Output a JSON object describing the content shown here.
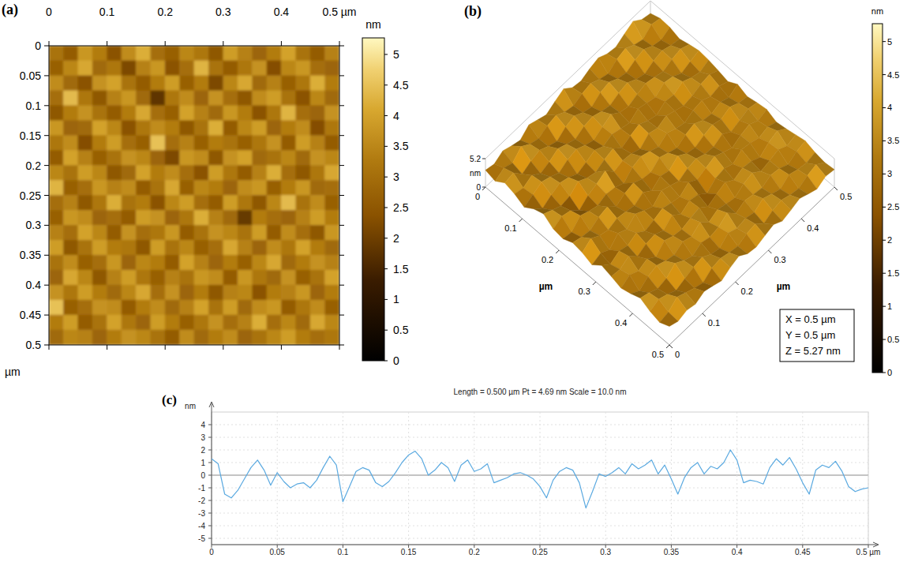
{
  "chart_data": [
    {
      "type": "heatmap",
      "title": "(a)",
      "xlim": [
        0,
        0.5
      ],
      "xticks": [
        0,
        0.1,
        0.2,
        0.3,
        0.4,
        {
          "value": 0.5,
          "label": "0.5 µm"
        }
      ],
      "ylim": [
        0,
        0.5
      ],
      "yticks": [
        0,
        0.05,
        0.1,
        0.15,
        0.2,
        0.25,
        0.3,
        0.35,
        0.4,
        0.45,
        0.5
      ],
      "y_label": "µm",
      "colorbar": {
        "label": "nm",
        "range": [
          0,
          5.27
        ],
        "ticks": [
          0,
          0.5,
          1,
          1.5,
          2,
          2.5,
          3,
          3.5,
          4,
          4.5,
          5
        ]
      },
      "cells": [
        [
          3.1,
          2.6,
          3.8,
          3.3,
          2.4,
          3.6,
          4.2,
          3.0,
          2.7,
          3.5,
          3.2,
          2.5,
          3.9,
          3.4,
          2.8,
          3.3,
          4.0,
          3.1,
          2.6,
          3.4
        ],
        [
          2.7,
          3.5,
          4.1,
          2.9,
          3.2,
          2.2,
          3.4,
          3.8,
          2.4,
          3.0,
          4.3,
          3.1,
          2.6,
          3.2,
          3.7,
          2.3,
          3.5,
          3.8,
          3.0,
          2.8
        ],
        [
          3.6,
          2.9,
          2.4,
          3.7,
          4.0,
          3.1,
          2.6,
          3.3,
          3.9,
          2.7,
          3.3,
          2.2,
          3.5,
          4.1,
          2.9,
          3.4,
          2.7,
          3.2,
          4.2,
          3.3
        ],
        [
          3.0,
          4.4,
          3.2,
          2.5,
          3.4,
          3.8,
          2.9,
          1.8,
          3.2,
          3.6,
          2.8,
          3.7,
          3.0,
          2.5,
          3.6,
          3.9,
          3.1,
          2.4,
          3.5,
          2.9
        ],
        [
          2.5,
          3.3,
          3.7,
          3.1,
          2.6,
          3.3,
          4.1,
          3.0,
          2.7,
          4.0,
          3.4,
          2.9,
          3.8,
          3.3,
          2.4,
          3.2,
          4.3,
          3.0,
          2.8,
          3.7
        ],
        [
          3.8,
          2.8,
          2.9,
          4.0,
          3.5,
          2.4,
          3.2,
          3.6,
          3.3,
          2.5,
          3.1,
          4.2,
          2.6,
          3.5,
          3.9,
          2.8,
          3.3,
          3.6,
          2.3,
          3.2
        ],
        [
          3.2,
          3.6,
          2.3,
          3.3,
          3.9,
          3.0,
          2.7,
          4.5,
          3.0,
          3.4,
          2.7,
          3.3,
          3.1,
          2.7,
          3.2,
          3.7,
          2.6,
          3.9,
          3.4,
          2.6
        ],
        [
          2.6,
          4.0,
          3.4,
          2.7,
          3.1,
          3.7,
          3.5,
          2.8,
          2.2,
          3.8,
          3.6,
          2.5,
          3.7,
          4.0,
          2.9,
          3.1,
          3.5,
          2.9,
          3.7,
          3.5
        ],
        [
          3.5,
          3.1,
          3.9,
          3.5,
          2.5,
          2.9,
          4.0,
          3.3,
          3.6,
          3.0,
          2.4,
          3.9,
          3.2,
          2.6,
          3.4,
          4.2,
          3.0,
          2.5,
          3.2,
          4.1
        ],
        [
          4.3,
          2.7,
          3.0,
          3.8,
          3.4,
          3.6,
          2.6,
          3.1,
          4.1,
          2.7,
          3.5,
          3.3,
          2.8,
          3.6,
          3.8,
          2.7,
          3.3,
          3.8,
          2.9,
          3.0
        ],
        [
          3.0,
          3.4,
          2.5,
          3.2,
          4.2,
          3.1,
          3.3,
          2.4,
          3.5,
          3.9,
          3.0,
          2.6,
          3.9,
          3.2,
          2.5,
          3.5,
          4.4,
          3.1,
          3.6,
          2.7
        ],
        [
          2.7,
          3.8,
          3.6,
          2.8,
          3.0,
          2.6,
          3.9,
          3.7,
          2.8,
          3.2,
          4.2,
          3.4,
          2.9,
          1.9,
          3.3,
          3.0,
          2.8,
          3.4,
          3.9,
          3.3
        ],
        [
          3.4,
          3.0,
          4.0,
          3.5,
          2.6,
          3.7,
          3.0,
          3.2,
          3.8,
          2.6,
          3.1,
          3.7,
          3.5,
          3.1,
          3.9,
          2.6,
          3.6,
          3.0,
          2.5,
          3.8
        ],
        [
          3.9,
          2.5,
          3.1,
          3.9,
          3.3,
          3.2,
          2.5,
          3.9,
          3.1,
          3.5,
          2.7,
          3.0,
          4.1,
          3.4,
          2.8,
          3.6,
          3.2,
          4.0,
          3.3,
          2.9
        ],
        [
          3.1,
          3.6,
          2.7,
          3.0,
          3.8,
          2.8,
          3.5,
          3.3,
          2.6,
          4.0,
          3.4,
          2.8,
          3.3,
          2.7,
          3.5,
          4.1,
          2.9,
          3.3,
          3.7,
          3.4
        ],
        [
          2.8,
          4.1,
          3.5,
          2.5,
          3.4,
          3.9,
          3.2,
          2.7,
          3.4,
          3.1,
          3.8,
          3.6,
          2.6,
          3.8,
          3.2,
          2.9,
          3.7,
          2.7,
          3.1,
          4.0
        ],
        [
          3.7,
          3.2,
          3.9,
          3.3,
          2.9,
          3.5,
          4.1,
          3.0,
          3.7,
          2.8,
          3.3,
          2.5,
          3.4,
          3.5,
          2.4,
          3.3,
          3.4,
          3.8,
          2.8,
          3.3
        ],
        [
          4.5,
          2.7,
          3.0,
          3.7,
          3.6,
          2.6,
          3.3,
          3.6,
          2.9,
          3.4,
          4.0,
          3.1,
          3.9,
          2.9,
          3.6,
          3.8,
          2.6,
          3.2,
          3.6,
          2.7
        ],
        [
          3.3,
          3.9,
          2.6,
          3.1,
          4.0,
          3.2,
          2.8,
          3.9,
          3.3,
          2.7,
          3.2,
          3.7,
          3.0,
          3.4,
          4.2,
          3.0,
          3.5,
          2.9,
          4.1,
          3.5
        ],
        [
          2.9,
          3.5,
          3.4,
          2.8,
          3.3,
          3.7,
          3.5,
          3.1,
          2.6,
          3.6,
          2.9,
          3.3,
          3.6,
          2.8,
          3.1,
          3.5,
          3.9,
          3.3,
          3.0,
          3.2
        ]
      ]
    },
    {
      "type": "surface",
      "title": "(b)",
      "xlim": [
        0,
        0.5
      ],
      "xticks": [
        0,
        0.1,
        0.2,
        0.3,
        0.4,
        0.5
      ],
      "x_label": "µm",
      "ylim": [
        0,
        0.5
      ],
      "yticks": [
        0,
        0.1,
        0.2,
        0.3,
        0.4,
        0.5
      ],
      "y_label": "µm",
      "zlim": [
        0,
        5.2
      ],
      "zticks": [
        0,
        5.2
      ],
      "z_label": "nm",
      "annotations": [
        "X = 0.5 µm",
        "Y = 0.5 µm",
        "Z = 5.27 nm"
      ],
      "colorbar": {
        "label": "nm",
        "range": [
          0,
          5.27
        ],
        "ticks": [
          0,
          0.5,
          1,
          1.5,
          2,
          2.5,
          3,
          3.5,
          4,
          4.5,
          5
        ]
      }
    },
    {
      "type": "line",
      "title": "(c)",
      "subtitle": "Length = 0.500 µm Pt = 4.69 nm Scale = 10.0 nm",
      "y_label": "nm",
      "color": "#5aa9e0",
      "grid": true,
      "xlim": [
        0,
        0.5
      ],
      "xticks": [
        0,
        0.05,
        0.1,
        0.15,
        0.2,
        0.25,
        0.3,
        0.35,
        0.4,
        0.45,
        {
          "value": 0.5,
          "label": "0.5 µm"
        }
      ],
      "ylim": [
        -5.5,
        5
      ],
      "yticks": [
        -5,
        -4,
        -3,
        -2,
        -1,
        0,
        1,
        2,
        3,
        4
      ],
      "x": [
        0,
        0.005,
        0.01,
        0.015,
        0.02,
        0.025,
        0.03,
        0.035,
        0.04,
        0.045,
        0.05,
        0.055,
        0.06,
        0.065,
        0.07,
        0.075,
        0.08,
        0.085,
        0.09,
        0.095,
        0.1,
        0.105,
        0.11,
        0.115,
        0.12,
        0.125,
        0.13,
        0.135,
        0.14,
        0.145,
        0.15,
        0.155,
        0.16,
        0.165,
        0.17,
        0.175,
        0.18,
        0.185,
        0.19,
        0.195,
        0.2,
        0.205,
        0.21,
        0.215,
        0.22,
        0.225,
        0.23,
        0.235,
        0.24,
        0.245,
        0.25,
        0.255,
        0.26,
        0.265,
        0.27,
        0.275,
        0.28,
        0.285,
        0.29,
        0.295,
        0.3,
        0.305,
        0.31,
        0.315,
        0.32,
        0.325,
        0.33,
        0.335,
        0.34,
        0.345,
        0.35,
        0.355,
        0.36,
        0.365,
        0.37,
        0.375,
        0.38,
        0.385,
        0.39,
        0.395,
        0.4,
        0.405,
        0.41,
        0.415,
        0.42,
        0.425,
        0.43,
        0.435,
        0.44,
        0.445,
        0.45,
        0.455,
        0.46,
        0.465,
        0.47,
        0.475,
        0.48,
        0.485,
        0.49,
        0.495,
        0.5
      ],
      "values": [
        1.3,
        0.9,
        -1.5,
        -1.8,
        -1.2,
        -0.3,
        0.6,
        1.2,
        0.4,
        -0.8,
        0.2,
        -0.5,
        -1.0,
        -0.7,
        -0.6,
        -1.0,
        -0.4,
        0.6,
        1.5,
        0.8,
        -2.1,
        -0.9,
        0.3,
        0.6,
        0.4,
        -0.6,
        -0.9,
        -0.5,
        0.2,
        1.0,
        1.6,
        1.9,
        1.3,
        0.0,
        0.4,
        1.0,
        0.6,
        -0.5,
        0.8,
        1.2,
        0.3,
        0.5,
        0.9,
        -0.6,
        -0.4,
        -0.2,
        0.1,
        0.2,
        0.0,
        -0.3,
        -0.9,
        -1.8,
        -0.4,
        0.3,
        0.6,
        0.4,
        -0.6,
        -2.6,
        -1.3,
        0.1,
        -0.1,
        0.2,
        0.6,
        0.1,
        0.9,
        0.5,
        0.8,
        1.2,
        0.1,
        0.8,
        -0.3,
        -1.5,
        -0.2,
        0.6,
        1.0,
        0.1,
        0.7,
        0.5,
        1.0,
        2.0,
        1.2,
        -0.6,
        -0.4,
        -0.5,
        -0.7,
        0.6,
        1.3,
        0.8,
        1.4,
        0.5,
        -0.6,
        -1.5,
        0.4,
        0.8,
        0.6,
        1.1,
        0.3,
        -0.9,
        -1.3,
        -1.1,
        -1.0
      ]
    }
  ]
}
